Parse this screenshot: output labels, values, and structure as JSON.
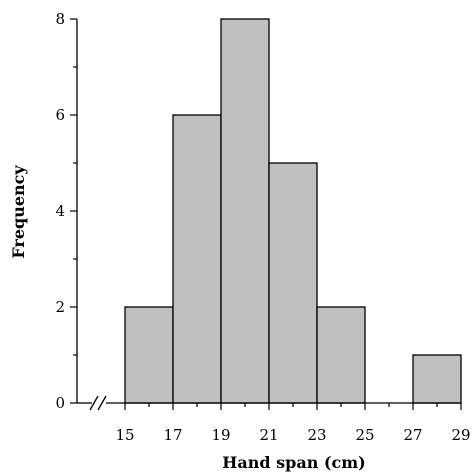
{
  "chart_data": {
    "type": "bar",
    "subtype": "histogram",
    "bins": [
      {
        "from": 15,
        "to": 17,
        "frequency": 2
      },
      {
        "from": 17,
        "to": 19,
        "frequency": 6
      },
      {
        "from": 19,
        "to": 21,
        "frequency": 8
      },
      {
        "from": 21,
        "to": 23,
        "frequency": 5
      },
      {
        "from": 23,
        "to": 25,
        "frequency": 2
      },
      {
        "from": 25,
        "to": 27,
        "frequency": 0
      },
      {
        "from": 27,
        "to": 29,
        "frequency": 1
      }
    ],
    "xlabel": "Hand span (cm)",
    "ylabel": "Frequency",
    "xticks": [
      15,
      17,
      19,
      21,
      23,
      25,
      27,
      29
    ],
    "yticks": [
      0,
      2,
      4,
      6,
      8
    ],
    "xlim": [
      15,
      29
    ],
    "ylim": [
      0,
      8
    ],
    "x_axis_break": true,
    "grid": false,
    "bar_color": "#c0c0c0",
    "bar_edge_color": "#000000"
  }
}
